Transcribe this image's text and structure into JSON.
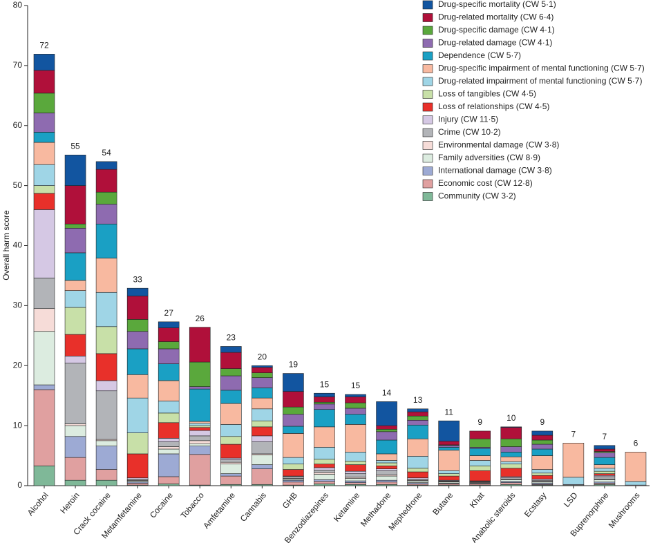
{
  "chart_data": {
    "type": "stacked_bar",
    "y_label": "Overall harm score",
    "categories": [
      "Alcohol",
      "Heroin",
      "Crack cocaine",
      "Metamfetamine",
      "Cocaine",
      "Tobacco",
      "Amfetamine",
      "Cannabis",
      "GHB",
      "Benzodiazepines",
      "Ketamine",
      "Methadone",
      "Mephedrone",
      "Butane",
      "Khat",
      "Anabolic steroids",
      "Ecstasy",
      "LSD",
      "Buprenorphine",
      "Mushrooms"
    ],
    "overall_scores": [
      72,
      55,
      54,
      33,
      27,
      26,
      23,
      20,
      19,
      15,
      15,
      14,
      13,
      11,
      9,
      10,
      9,
      7,
      7,
      6
    ],
    "ylim": [
      0,
      80
    ],
    "yticks": [
      0,
      10,
      20,
      30,
      40,
      50,
      60,
      70,
      80
    ],
    "series": [
      {
        "name": "Drug-specific mortality (CW 5·1)",
        "color": "#1255a0",
        "values": [
          2.7,
          5.1,
          1.3,
          1.3,
          1.0,
          0,
          1.0,
          0.3,
          3.0,
          0.6,
          0.4,
          4.0,
          0.5,
          3.4,
          0,
          0.1,
          0.7,
          0,
          0.6,
          0
        ]
      },
      {
        "name": "Drug-related mortality (CW 6·4)",
        "color": "#b0103a",
        "values": [
          3.8,
          6.4,
          3.8,
          3.9,
          2.3,
          5.8,
          2.7,
          0.9,
          2.6,
          0.9,
          1.0,
          0.6,
          0.7,
          0.6,
          1.3,
          1.9,
          0.8,
          0,
          0.4,
          0
        ]
      },
      {
        "name": "Drug-specific damage (CW 4·1)",
        "color": "#5aa83c",
        "values": [
          3.3,
          0.7,
          2.0,
          2.0,
          1.2,
          4.1,
          1.2,
          0.8,
          1.2,
          0.3,
          0.9,
          0.4,
          0.7,
          0.1,
          1.4,
          1.3,
          0.7,
          0,
          0.2,
          0
        ]
      },
      {
        "name": "Drug-related damage (CW 4·1)",
        "color": "#8e6bb0",
        "values": [
          3.2,
          4.1,
          3.3,
          2.9,
          2.5,
          0.4,
          2.4,
          1.7,
          2.0,
          0.9,
          1.0,
          1.4,
          0.8,
          0.3,
          0.2,
          0.9,
          0.8,
          0,
          0.8,
          0
        ]
      },
      {
        "name": "Dependence (CW 5·7)",
        "color": "#1aa0c4",
        "values": [
          1.7,
          4.6,
          5.7,
          4.3,
          2.8,
          5.4,
          2.2,
          1.7,
          1.2,
          2.9,
          1.7,
          2.3,
          2.3,
          0.5,
          1.2,
          0.8,
          1.1,
          0,
          1.2,
          0
        ]
      },
      {
        "name": "Drug-specific impairment of mental functioning (CW 5·7)",
        "color": "#f8b9a0",
        "values": [
          3.7,
          1.7,
          5.7,
          3.9,
          3.4,
          0.3,
          3.5,
          1.8,
          4.0,
          3.4,
          4.6,
          1.1,
          2.9,
          3.4,
          0.8,
          0.8,
          2.3,
          5.7,
          0.6,
          4.9
        ]
      },
      {
        "name": "Drug-related impairment of mental functioning (CW 5·7)",
        "color": "#9fd5e6",
        "values": [
          3.5,
          2.8,
          5.7,
          5.8,
          2.0,
          0.4,
          2.0,
          2.0,
          1.1,
          2.0,
          1.5,
          0.4,
          2.0,
          0.5,
          0.9,
          0.4,
          0.6,
          1.2,
          0.5,
          0.6
        ]
      },
      {
        "name": "Loss of tangibles (CW 4·5)",
        "color": "#c8e0a8",
        "values": [
          1.3,
          4.5,
          4.5,
          3.5,
          1.6,
          0.3,
          1.3,
          1.0,
          0.9,
          0.8,
          0.6,
          0.5,
          0.6,
          0.4,
          0.8,
          0.7,
          0.4,
          0,
          0.4,
          0
        ]
      },
      {
        "name": "Loss of relationships (CW 4·5)",
        "color": "#e8302a",
        "values": [
          2.7,
          3.6,
          4.5,
          4.0,
          2.6,
          0.5,
          2.3,
          1.5,
          1.1,
          0.6,
          1.1,
          0.5,
          1.0,
          0.7,
          1.7,
          1.4,
          0.6,
          0,
          0.3,
          0
        ]
      },
      {
        "name": "Injury (CW 11·5)",
        "color": "#d5c8e4",
        "values": [
          11.4,
          1.2,
          1.7,
          0.2,
          0.6,
          0.9,
          0.3,
          1.0,
          0.1,
          0.4,
          0.4,
          0.3,
          0.2,
          0.1,
          0.1,
          0.2,
          0.2,
          0.1,
          0.2,
          0.1
        ]
      },
      {
        "name": "Crime (CW 10·2)",
        "color": "#b2b4b8",
        "values": [
          5.1,
          10.1,
          8.1,
          0.2,
          0.8,
          0.8,
          0.4,
          2.0,
          0.3,
          0.4,
          0.6,
          0.7,
          0.2,
          0.1,
          0.1,
          0.2,
          0.2,
          0,
          0.4,
          0
        ]
      },
      {
        "name": "Environmental damage (CW 3·8)",
        "color": "#f6dcd8",
        "values": [
          3.8,
          0.3,
          0.2,
          0.1,
          0.4,
          0.5,
          0.3,
          0.2,
          0.1,
          0.3,
          0.2,
          0.2,
          0.1,
          0.1,
          0.1,
          0.1,
          0.1,
          0,
          0.1,
          0
        ]
      },
      {
        "name": "Family adversities (CW 8·9)",
        "color": "#dcece0",
        "values": [
          8.9,
          1.8,
          0.9,
          0.2,
          0.8,
          0.4,
          1.6,
          1.6,
          0.2,
          0.9,
          0.4,
          0.7,
          0.3,
          0.2,
          0.1,
          0.3,
          0.2,
          0.1,
          0.4,
          0
        ]
      },
      {
        "name": "International damage (CW 3·8)",
        "color": "#9daad4",
        "values": [
          0.8,
          3.5,
          3.9,
          0.2,
          3.8,
          1.4,
          0.4,
          0.7,
          0.3,
          0.3,
          0.3,
          0.3,
          0.2,
          0.1,
          0.1,
          0.2,
          0.2,
          0,
          0.2,
          0
        ]
      },
      {
        "name": "Economic cost (CW 12·8)",
        "color": "#e0a0a0",
        "values": [
          12.7,
          3.8,
          1.8,
          0.3,
          1.2,
          5.1,
          1.4,
          2.6,
          0.5,
          0.4,
          0.3,
          0.4,
          0.2,
          0.2,
          0.2,
          0.3,
          0.1,
          0,
          0.2,
          0
        ]
      },
      {
        "name": "Community (CW 3·2)",
        "color": "#7fb898",
        "values": [
          3.3,
          0.9,
          0.9,
          0.1,
          0.3,
          0.1,
          0.2,
          0.2,
          0.1,
          0.3,
          0.2,
          0.2,
          0.1,
          0.1,
          0.1,
          0.2,
          0.1,
          0,
          0.2,
          0
        ]
      }
    ]
  }
}
